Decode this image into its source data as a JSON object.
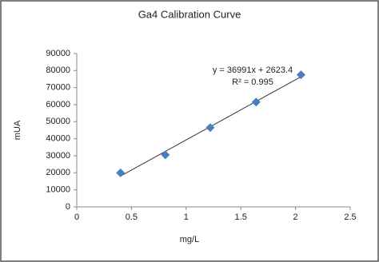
{
  "chart_data": {
    "type": "scatter",
    "title": "Ga4 Calibration Curve",
    "x_label": "mg/L",
    "y_label": "mUA",
    "x": [
      0.4,
      0.81,
      1.22,
      1.64,
      2.05
    ],
    "values": [
      20000,
      30500,
      46500,
      61500,
      77500
    ],
    "color": "#4a7ebb",
    "trendline": true,
    "annotations": [
      "y = 36991x + 2623.4",
      "R² = 0.995"
    ],
    "xlim": [
      0,
      2.5
    ],
    "xticks": [
      0,
      0.5,
      1,
      1.5,
      2,
      2.5
    ],
    "ylim": [
      0,
      90000
    ],
    "yticks": [
      0,
      10000,
      20000,
      30000,
      40000,
      50000,
      60000,
      70000,
      80000,
      90000
    ],
    "grid": false
  }
}
